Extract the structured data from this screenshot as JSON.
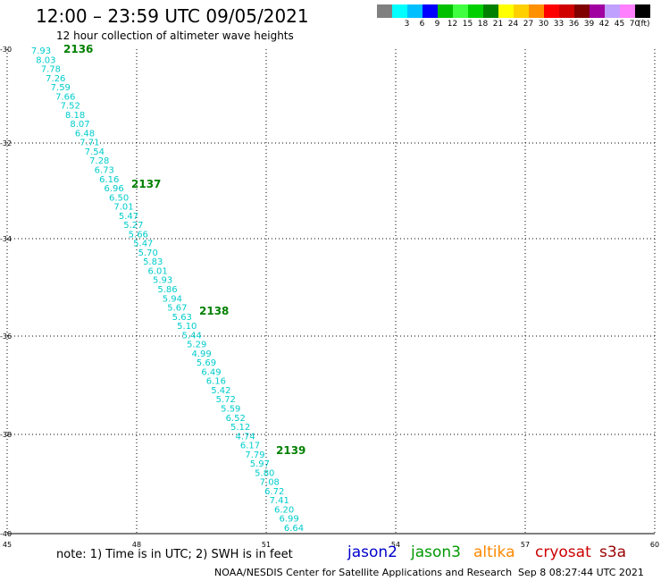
{
  "header": {
    "title": "12:00 – 23:59 UTC 09/05/2021",
    "subtitle": "12 hour collection of altimeter wave heights"
  },
  "legend": {
    "unit": "(ft)",
    "steps": [
      {
        "label": "",
        "color": "#808080"
      },
      {
        "label": "3",
        "color": "#00ffff"
      },
      {
        "label": "6",
        "color": "#00bfff"
      },
      {
        "label": "9",
        "color": "#0000ff"
      },
      {
        "label": "12",
        "color": "#00c000"
      },
      {
        "label": "15",
        "color": "#40ff40"
      },
      {
        "label": "18",
        "color": "#00d000"
      },
      {
        "label": "21",
        "color": "#008000"
      },
      {
        "label": "24",
        "color": "#ffff00"
      },
      {
        "label": "27",
        "color": "#ffd000"
      },
      {
        "label": "30",
        "color": "#ff9000"
      },
      {
        "label": "33",
        "color": "#ff0000"
      },
      {
        "label": "36",
        "color": "#d00000"
      },
      {
        "label": "39",
        "color": "#800000"
      },
      {
        "label": "42",
        "color": "#a000a0"
      },
      {
        "label": "45",
        "color": "#c0a0ff"
      },
      {
        "label": "70",
        "color": "#ff80ff"
      },
      {
        "label": "",
        "color": "#000000"
      }
    ]
  },
  "map": {
    "lon_ticks": [
      "45",
      "48",
      "51",
      "54",
      "57",
      "60"
    ],
    "lat_ticks": [
      "-30",
      "-32",
      "-34",
      "-36",
      "-38",
      "-40"
    ],
    "label_color": "#00cccc",
    "pass_color": "#008000",
    "pass_labels": [
      "2136",
      "2137",
      "2138",
      "2139"
    ],
    "swh_values": [
      "7.93",
      "8.03",
      "7.78",
      "7.26",
      "7.59",
      "7.66",
      "7.52",
      "8.18",
      "8.07",
      "6.48",
      "7.71",
      "7.54",
      "7.28",
      "6.73",
      "6.16",
      "6.96",
      "6.50",
      "7.01",
      "5.47",
      "5.27",
      "5.66",
      "5.47",
      "5.70",
      "5.83",
      "6.01",
      "5.93",
      "5.86",
      "5.94",
      "5.67",
      "5.63",
      "5.10",
      "5.44",
      "5.29",
      "4.99",
      "5.69",
      "6.49",
      "6.16",
      "5.42",
      "5.72",
      "5.59",
      "6.52",
      "5.12",
      "4.74",
      "6.17",
      "7.79",
      "5.97",
      "5.80",
      "7.08",
      "6.72",
      "7.41",
      "6.20",
      "6.99",
      "6.64"
    ]
  },
  "footer": {
    "note": "note:  1) Time is in UTC;  2) SWH is in feet",
    "satellites": [
      {
        "name": "jason2",
        "color": "#0000cc"
      },
      {
        "name": "jason3",
        "color": "#009900"
      },
      {
        "name": "altika",
        "color": "#ff8800"
      },
      {
        "name": "cryosat",
        "color": "#cc0000"
      },
      {
        "name": "s3a",
        "color": "#990000"
      }
    ],
    "credit": "NOAA/NESDIS Center for Satellite Applications and Research",
    "timestamp": "Sep  8 08:27:44 UTC 2021"
  }
}
